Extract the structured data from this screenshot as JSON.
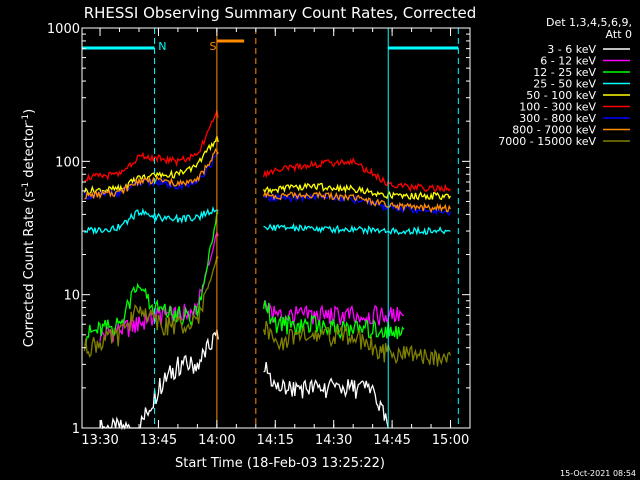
{
  "chart_data": {
    "type": "line",
    "title": "RHESSI Observing Summary Count Rates, Corrected",
    "xlabel": "Start Time (18-Feb-03 13:25:22)",
    "ylabel_main": "Corrected Count Rate (s",
    "ylabel_sup1": "-1",
    "ylabel_mid": " detector",
    "ylabel_sup2": "-1",
    "ylabel_end": ")",
    "yscale": "log",
    "xlim": [
      "13:25:22",
      "15:05:00"
    ],
    "ylim": [
      1,
      1000
    ],
    "x_ticks": [
      "13:30",
      "13:45",
      "14:00",
      "14:15",
      "14:30",
      "14:45",
      "15:00"
    ],
    "y_ticks": [
      1,
      10,
      100,
      1000
    ],
    "y_tick_labels": [
      "1",
      "10",
      "100",
      "1000"
    ],
    "legend": {
      "placement": "right",
      "header": [
        "Det 1,3,4,5,6,9,",
        "Att 0"
      ]
    },
    "series": [
      {
        "name": "3 - 6 keV",
        "color": "#ffffff",
        "x": [
          "13:30",
          "13:40",
          "13:45",
          "13:50",
          "13:55",
          "14:00",
          "14:12",
          "14:15",
          "14:20",
          "14:30",
          "14:40",
          "14:44"
        ],
        "values": [
          1,
          1,
          2,
          3,
          3,
          5,
          3,
          2,
          2,
          2,
          2,
          1
        ]
      },
      {
        "name": "6 - 12 keV",
        "color": "#ff00ff",
        "x": [
          "13:30",
          "13:40",
          "13:43",
          "13:50",
          "13:55",
          "14:00",
          "14:12",
          "14:15",
          "14:25",
          "14:35",
          "14:45",
          "14:48"
        ],
        "values": [
          5,
          6,
          7,
          7,
          8,
          30,
          8,
          7,
          7,
          7,
          7,
          7
        ]
      },
      {
        "name": "12 - 25 keV",
        "color": "#00ff00",
        "x": [
          "13:26",
          "13:35",
          "13:40",
          "13:43",
          "13:50",
          "13:55",
          "14:00",
          "14:12",
          "14:15",
          "14:25",
          "14:35",
          "14:45",
          "14:48"
        ],
        "values": [
          5,
          6,
          12,
          8,
          7,
          7,
          40,
          9,
          6,
          6,
          5.5,
          5.5,
          5.5
        ]
      },
      {
        "name": "25 - 50 keV",
        "color": "#00ffff",
        "x": [
          "13:26",
          "13:35",
          "13:40",
          "13:45",
          "13:50",
          "13:55",
          "14:00",
          "14:12",
          "14:15",
          "14:25",
          "14:35",
          "14:45",
          "15:00"
        ],
        "values": [
          30,
          32,
          42,
          38,
          37,
          38,
          45,
          32,
          32,
          31,
          31,
          30,
          30
        ]
      },
      {
        "name": "50 - 100 keV",
        "color": "#ffff00",
        "x": [
          "13:26",
          "13:35",
          "13:40",
          "13:45",
          "13:50",
          "13:55",
          "14:00",
          "14:12",
          "14:15",
          "14:25",
          "14:35",
          "14:45",
          "15:00"
        ],
        "values": [
          60,
          62,
          75,
          78,
          80,
          95,
          150,
          62,
          62,
          65,
          62,
          55,
          55
        ]
      },
      {
        "name": "100 - 300 keV",
        "color": "#ff0000",
        "x": [
          "13:26",
          "13:35",
          "13:40",
          "13:45",
          "13:50",
          "13:55",
          "14:00",
          "14:12",
          "14:15",
          "14:25",
          "14:35",
          "14:45",
          "15:00"
        ],
        "values": [
          75,
          80,
          110,
          105,
          100,
          110,
          230,
          80,
          85,
          95,
          100,
          65,
          62
        ]
      },
      {
        "name": "300 - 800 keV",
        "color": "#0000ff",
        "x": [
          "13:26",
          "13:35",
          "13:40",
          "13:45",
          "13:50",
          "13:55",
          "14:00",
          "14:12",
          "14:15",
          "14:25",
          "14:35",
          "14:45",
          "15:00"
        ],
        "values": [
          55,
          58,
          70,
          70,
          65,
          70,
          110,
          55,
          52,
          55,
          52,
          45,
          42
        ]
      },
      {
        "name": "800 - 7000 keV",
        "color": "#ff8c00",
        "x": [
          "13:26",
          "13:35",
          "13:40",
          "13:45",
          "13:50",
          "13:55",
          "14:00",
          "14:12",
          "14:15",
          "14:25",
          "14:35",
          "14:45",
          "15:00"
        ],
        "values": [
          55,
          58,
          72,
          72,
          68,
          72,
          120,
          57,
          55,
          56,
          54,
          46,
          44
        ]
      },
      {
        "name": "7000 - 15000 keV",
        "color": "#808000",
        "x": [
          "13:26",
          "13:35",
          "13:40",
          "13:45",
          "13:50",
          "13:55",
          "14:00",
          "14:12",
          "14:15",
          "14:25",
          "14:35",
          "14:45",
          "15:00"
        ],
        "values": [
          4,
          5,
          8,
          6,
          6,
          6,
          20,
          6,
          4.5,
          5,
          5,
          3.5,
          3.5
        ]
      }
    ],
    "annotations": [
      {
        "text": "N",
        "color": "#00ffff",
        "x": "13:46"
      },
      {
        "text": "S",
        "color": "#ff8c00",
        "x": "13:59"
      }
    ],
    "night_bars": [
      {
        "from": "13:25:22",
        "to": "13:44",
        "color": "#00ffff"
      },
      {
        "from": "14:44",
        "to": "15:02",
        "color": "#00ffff"
      }
    ],
    "saa_bar": {
      "from": "14:00",
      "to": "14:07",
      "color": "#ff8c00"
    },
    "vlines": [
      {
        "x": "13:44",
        "color": "#00ffff",
        "style": "dashed"
      },
      {
        "x": "14:00",
        "color": "#ff8c00",
        "style": "solid"
      },
      {
        "x": "14:10",
        "color": "#ff8c00",
        "style": "dashed"
      },
      {
        "x": "14:44",
        "color": "#00ffff",
        "style": "solid"
      },
      {
        "x": "15:02",
        "color": "#00ffff",
        "style": "dashed"
      }
    ],
    "footer": "15-Oct-2021 08:54"
  }
}
